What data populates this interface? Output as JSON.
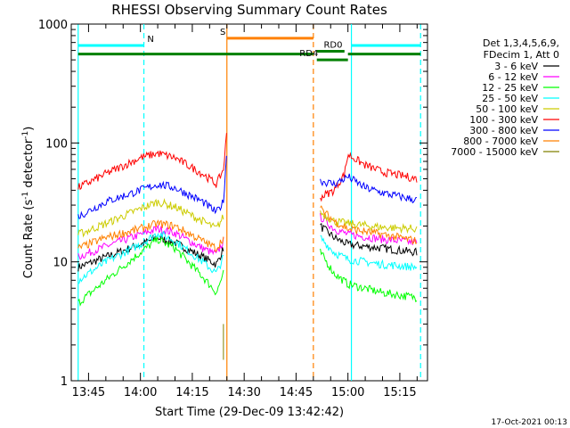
{
  "chart_data": {
    "type": "line",
    "title": "RHESSI Observing Summary Count Rates",
    "xlabel": "Start Time (29-Dec-09 13:42:42)",
    "ylabel_main": "Count Rate (s",
    "ylabel_sup1": "-1",
    "ylabel_mid": " detector",
    "ylabel_sup2": "-1",
    "ylabel_end": ")",
    "y_scale": "log",
    "ylim": [
      1,
      1000
    ],
    "xlim": [
      "13:40",
      "15:23"
    ],
    "x_ticks": [
      "13:45",
      "14:00",
      "14:15",
      "14:30",
      "14:45",
      "15:00",
      "15:15"
    ],
    "y_ticks": [
      "1",
      "10",
      "100",
      "1000"
    ],
    "legend_header": [
      "Det 1,3,4,5,6,9,",
      "FDecim 1, Att 0"
    ],
    "legend_placement": "right",
    "stamp": "17-Oct-2021 00:13",
    "gap": [
      "14:25",
      "14:51"
    ],
    "series": [
      {
        "name": "3 - 6 keV",
        "color": "#000000",
        "pre": [
          [
            "13:42",
            9
          ],
          [
            "13:50",
            11
          ],
          [
            "14:00",
            14
          ],
          [
            "14:05",
            16
          ],
          [
            "14:10",
            14.5
          ],
          [
            "14:18",
            11
          ],
          [
            "14:22",
            9.5
          ],
          [
            "14:24",
            13
          ]
        ],
        "post": [
          [
            "14:52",
            20
          ],
          [
            "14:56",
            16
          ],
          [
            "15:00",
            14
          ],
          [
            "15:10",
            13
          ],
          [
            "15:20",
            12
          ]
        ]
      },
      {
        "name": "6 - 12 keV",
        "color": "#ff00ff",
        "pre": [
          [
            "13:42",
            11
          ],
          [
            "13:50",
            13.5
          ],
          [
            "14:00",
            17
          ],
          [
            "14:05",
            19
          ],
          [
            "14:10",
            17.5
          ],
          [
            "14:18",
            13
          ],
          [
            "14:22",
            11.5
          ],
          [
            "14:24",
            15
          ]
        ],
        "post": [
          [
            "14:52",
            24
          ],
          [
            "14:56",
            19
          ],
          [
            "15:00",
            17
          ],
          [
            "15:10",
            15.5
          ],
          [
            "15:20",
            14.5
          ]
        ]
      },
      {
        "name": "12 - 25 keV",
        "color": "#00ff00",
        "pre": [
          [
            "13:42",
            4.5
          ],
          [
            "13:50",
            7
          ],
          [
            "14:00",
            12
          ],
          [
            "14:05",
            15.5
          ],
          [
            "14:10",
            13
          ],
          [
            "14:18",
            7.5
          ],
          [
            "14:22",
            5.5
          ],
          [
            "14:24",
            8
          ]
        ],
        "post": [
          [
            "14:52",
            12
          ],
          [
            "14:56",
            8
          ],
          [
            "15:00",
            6.5
          ],
          [
            "15:10",
            5.5
          ],
          [
            "15:20",
            5
          ]
        ]
      },
      {
        "name": "25 - 50 keV",
        "color": "#00ffff",
        "pre": [
          [
            "13:42",
            7
          ],
          [
            "13:50",
            10
          ],
          [
            "14:00",
            14
          ],
          [
            "14:05",
            17.5
          ],
          [
            "14:10",
            15
          ],
          [
            "14:18",
            10
          ],
          [
            "14:22",
            8
          ],
          [
            "14:24",
            11
          ]
        ],
        "post": [
          [
            "14:52",
            16
          ],
          [
            "14:56",
            12
          ],
          [
            "15:00",
            10.5
          ],
          [
            "15:10",
            9.5
          ],
          [
            "15:20",
            9
          ]
        ]
      },
      {
        "name": "50 - 100 keV",
        "color": "#cccc00",
        "pre": [
          [
            "13:42",
            17
          ],
          [
            "13:50",
            21
          ],
          [
            "14:00",
            28
          ],
          [
            "14:05",
            32
          ],
          [
            "14:10",
            29
          ],
          [
            "14:18",
            22
          ],
          [
            "14:22",
            19
          ],
          [
            "14:24",
            24
          ]
        ],
        "post": [
          [
            "14:52",
            26
          ],
          [
            "14:56",
            22
          ],
          [
            "15:00",
            21
          ],
          [
            "15:10",
            19.5
          ],
          [
            "15:20",
            19
          ]
        ]
      },
      {
        "name": "100 - 300 keV",
        "color": "#ff0000",
        "pre": [
          [
            "13:42",
            42
          ],
          [
            "13:50",
            55
          ],
          [
            "14:00",
            75
          ],
          [
            "14:05",
            82
          ],
          [
            "14:10",
            75
          ],
          [
            "14:18",
            55
          ],
          [
            "14:22",
            45
          ],
          [
            "14:24",
            60
          ],
          [
            "14:25",
            125
          ]
        ],
        "post": [
          [
            "14:52",
            35
          ],
          [
            "14:56",
            40
          ],
          [
            "14:59",
            55
          ],
          [
            "15:00",
            80
          ],
          [
            "15:05",
            65
          ],
          [
            "15:10",
            57
          ],
          [
            "15:20",
            50
          ]
        ]
      },
      {
        "name": "300 - 800 keV",
        "color": "#0000ff",
        "pre": [
          [
            "13:42",
            24
          ],
          [
            "13:50",
            32
          ],
          [
            "14:00",
            40
          ],
          [
            "14:05",
            45
          ],
          [
            "14:10",
            42
          ],
          [
            "14:18",
            32
          ],
          [
            "14:22",
            26
          ],
          [
            "14:24",
            32
          ],
          [
            "14:25",
            90
          ]
        ],
        "post": [
          [
            "14:52",
            48
          ],
          [
            "14:56",
            45
          ],
          [
            "15:00",
            52
          ],
          [
            "15:05",
            42
          ],
          [
            "15:10",
            38
          ],
          [
            "15:20",
            33
          ]
        ]
      },
      {
        "name": "800 - 7000 keV",
        "color": "#ff8000",
        "pre": [
          [
            "13:42",
            13
          ],
          [
            "13:50",
            16
          ],
          [
            "14:00",
            19
          ],
          [
            "14:05",
            21
          ],
          [
            "14:10",
            20
          ],
          [
            "14:18",
            15
          ],
          [
            "14:22",
            13
          ],
          [
            "14:24",
            16
          ]
        ],
        "post": [
          [
            "14:52",
            28
          ],
          [
            "14:56",
            22
          ],
          [
            "15:00",
            19
          ],
          [
            "15:10",
            17
          ],
          [
            "15:20",
            15
          ]
        ]
      },
      {
        "name": "7000 - 15000 keV",
        "color": "#808000",
        "pre": [
          [
            "14:24",
            1.5
          ],
          [
            "14:24",
            3
          ]
        ],
        "post": []
      }
    ],
    "state_bars": [
      {
        "label": "N",
        "color": "#00ffff",
        "y": 660,
        "from": "13:42",
        "to": "14:01",
        "label_at": "14:02"
      },
      {
        "label": "",
        "color": "#00ffff",
        "y": 660,
        "from": "15:01",
        "to": "15:21",
        "label_at": ""
      },
      {
        "label": "S",
        "color": "#ff8000",
        "y": 760,
        "from": "14:25",
        "to": "14:50",
        "label_at": "14:23"
      },
      {
        "label": "",
        "color": "#008000",
        "y": 560,
        "from": "13:42",
        "to": "14:50",
        "label_at": ""
      },
      {
        "label": "RD4",
        "color": "#008000",
        "y": 500,
        "from": "14:51",
        "to": "15:00",
        "label_at": "14:46"
      },
      {
        "label": "RD0",
        "color": "#008000",
        "y": 590,
        "from": "14:51",
        "to": "14:59",
        "label_at": "14:53"
      },
      {
        "label": "",
        "color": "#008000",
        "y": 560,
        "from": "15:00",
        "to": "15:21",
        "label_at": ""
      }
    ],
    "vlines": [
      {
        "t": "13:42",
        "color": "#00ffff",
        "dash": false
      },
      {
        "t": "14:01",
        "color": "#00ffff",
        "dash": true
      },
      {
        "t": "14:25",
        "color": "#ff8000",
        "dash": false
      },
      {
        "t": "14:50",
        "color": "#ff8000",
        "dash": true
      },
      {
        "t": "15:01",
        "color": "#00ffff",
        "dash": false
      },
      {
        "t": "15:21",
        "color": "#00ffff",
        "dash": true
      }
    ]
  }
}
